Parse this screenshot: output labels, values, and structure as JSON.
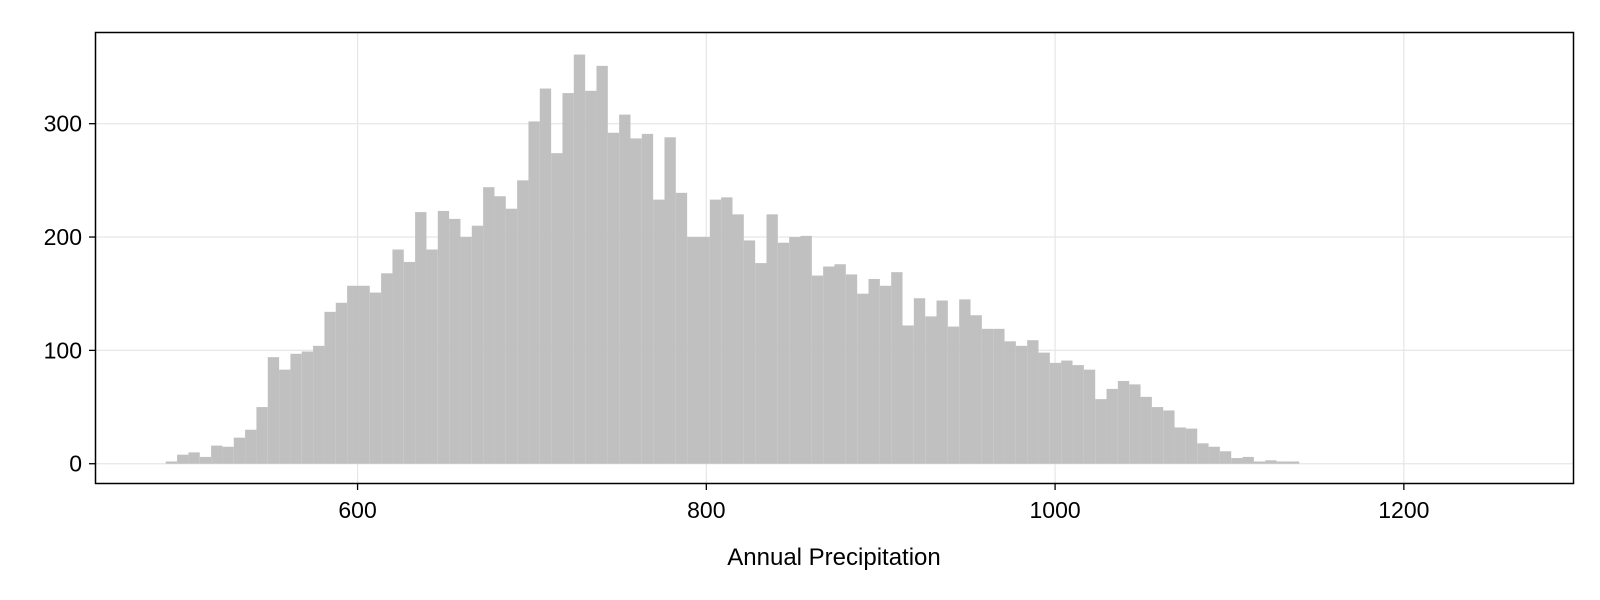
{
  "chart_data": {
    "type": "bar",
    "subtype": "histogram",
    "title": "",
    "xlabel": "Annual Precipitation",
    "ylabel": "",
    "xlim": [
      450,
      1297
    ],
    "ylim": [
      -17,
      380
    ],
    "x_ticks": [
      600,
      800,
      1000,
      1200
    ],
    "x_tick_labels": [
      "600",
      "800",
      "1000",
      "1200"
    ],
    "y_ticks": [
      0,
      100,
      200,
      300
    ],
    "y_tick_labels": [
      "0",
      "100",
      "200",
      "300"
    ],
    "grid": true,
    "legend": "none",
    "bin_start": 490,
    "bin_width": 6.5,
    "values": [
      2,
      8,
      10,
      6,
      16,
      15,
      23,
      30,
      50,
      94,
      83,
      97,
      99,
      104,
      134,
      142,
      157,
      157,
      151,
      168,
      189,
      178,
      222,
      189,
      223,
      216,
      200,
      210,
      244,
      236,
      225,
      250,
      302,
      331,
      274,
      327,
      361,
      329,
      351,
      292,
      308,
      287,
      291,
      233,
      288,
      239,
      200,
      200,
      233,
      235,
      220,
      197,
      177,
      220,
      195,
      200,
      201,
      166,
      174,
      176,
      167,
      150,
      163,
      157,
      169,
      122,
      146,
      130,
      144,
      121,
      145,
      131,
      119,
      119,
      108,
      104,
      109,
      98,
      89,
      91,
      87,
      83,
      57,
      66,
      73,
      70,
      59,
      50,
      47,
      32,
      31,
      18,
      15,
      11,
      5,
      6,
      2,
      3,
      2,
      2
    ],
    "colors": {
      "bar": "#bdbdbd",
      "grid": "#e6e6e6",
      "axis": "#000000",
      "background": "#ffffff"
    }
  }
}
